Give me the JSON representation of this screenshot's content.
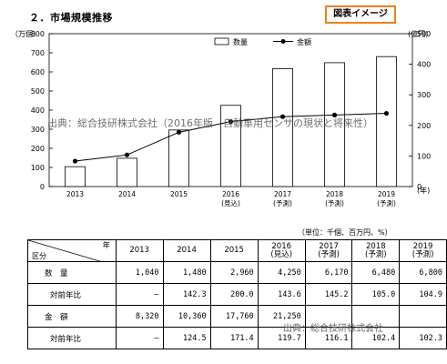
{
  "header": {
    "section_title": "２．市場規模推移",
    "badge": "図表イメージ"
  },
  "watermark": {
    "source_mid": "出典：総合技研株式会社（2016年版　自動車用センサの現状と将来性）",
    "source_table": "出典：総合技研株式会社"
  },
  "chart_data": {
    "type": "bar",
    "categories": [
      "2013",
      "2014",
      "2015",
      "2016",
      "2017",
      "2018",
      "2019"
    ],
    "category_notes": [
      "",
      "",
      "",
      "(見込)",
      "(予測)",
      "(予測)",
      "(予測)"
    ],
    "series": [
      {
        "name": "数量",
        "type": "bar",
        "axis": "left",
        "values": [
          104,
          148,
          296,
          425,
          617,
          648,
          680
        ]
      },
      {
        "name": "金額",
        "type": "line",
        "axis": "right",
        "values": [
          83.2,
          103.6,
          177.6,
          212.5,
          228.6,
          234.0,
          239.4
        ]
      }
    ],
    "left_axis": {
      "unit_label": "（万個）",
      "ylim": [
        0,
        800
      ],
      "ticks": [
        0,
        100,
        200,
        300,
        400,
        500,
        600,
        700,
        800
      ]
    },
    "right_axis": {
      "unit_label": "(億円)",
      "ylim": [
        0,
        500
      ],
      "ticks": [
        0,
        100,
        200,
        300,
        400,
        500
      ]
    },
    "x_unit_label": "(年)",
    "legend_position": "top-right",
    "grid": false
  },
  "table": {
    "unit": "（単位：千個、百万円、%）",
    "corner_year": "年",
    "corner_kubun": "区分",
    "columns": [
      {
        "year": "2013",
        "note": ""
      },
      {
        "year": "2014",
        "note": ""
      },
      {
        "year": "2015",
        "note": ""
      },
      {
        "year": "2016",
        "note": "(見込)"
      },
      {
        "year": "2017",
        "note": "(予測)"
      },
      {
        "year": "2018",
        "note": "(予測)"
      },
      {
        "year": "2019",
        "note": "(予測)"
      }
    ],
    "rows": [
      {
        "label": "数　量",
        "indent": "l1",
        "values": [
          "1,040",
          "1,480",
          "2,960",
          "4,250",
          "6,170",
          "6,480",
          "6,800"
        ]
      },
      {
        "label": "対前年比",
        "indent": "l2",
        "values": [
          "―",
          "142.3",
          "200.0",
          "143.6",
          "145.2",
          "105.0",
          "104.9"
        ]
      },
      {
        "label": "金　額",
        "indent": "l1",
        "values": [
          "8,320",
          "10,360",
          "17,760",
          "21,250",
          "",
          "",
          ""
        ]
      },
      {
        "label": "対前年比",
        "indent": "l2",
        "values": [
          "―",
          "124.5",
          "171.4",
          "119.7",
          "116.1",
          "102.4",
          "102.3"
        ]
      }
    ]
  }
}
